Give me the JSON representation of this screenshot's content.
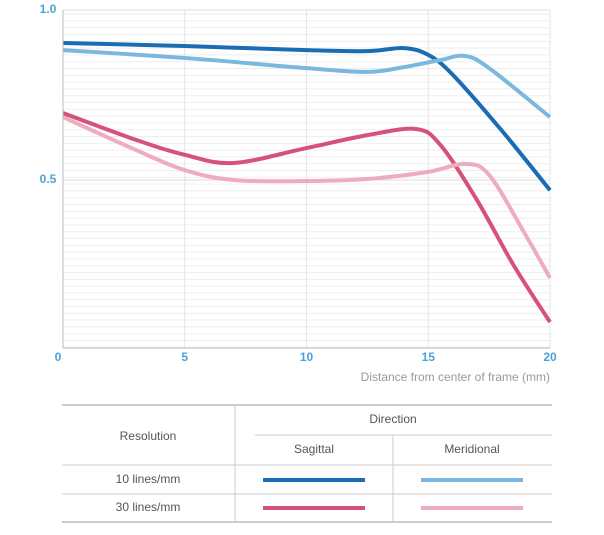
{
  "chart_data": {
    "type": "line",
    "x_label": "Distance from center of frame (mm)",
    "xlim": [
      0,
      20
    ],
    "xticks": [
      0,
      5,
      10,
      15,
      20
    ],
    "ylim": [
      0,
      1
    ],
    "yticks": [
      {
        "value": 0.5,
        "label": "0.5"
      },
      {
        "value": 1,
        "label": "1.0"
      }
    ],
    "grid": true,
    "series": [
      {
        "color": "#1a6db5",
        "x": [
          0,
          5,
          10,
          12.5,
          14,
          15,
          16,
          18,
          20
        ],
        "values": [
          0.903,
          0.894,
          0.882,
          0.879,
          0.888,
          0.868,
          0.81,
          0.647,
          0.47
        ]
      },
      {
        "color": "#7ab8dd",
        "x": [
          0,
          5,
          10,
          12.5,
          14,
          15.5,
          16.5,
          17.5,
          20
        ],
        "values": [
          0.882,
          0.859,
          0.829,
          0.818,
          0.832,
          0.853,
          0.865,
          0.829,
          0.685
        ]
      },
      {
        "color": "#d6527a",
        "x": [
          0,
          3,
          5,
          7,
          10,
          12.5,
          14.5,
          15.5,
          17,
          18.5,
          20
        ],
        "values": [
          0.697,
          0.618,
          0.574,
          0.55,
          0.594,
          0.632,
          0.65,
          0.603,
          0.441,
          0.25,
          0.082
        ]
      },
      {
        "color": "#eeacbf",
        "x": [
          0,
          3,
          5,
          7,
          10,
          12.5,
          15,
          16.5,
          17.5,
          19,
          20
        ],
        "values": [
          0.685,
          0.588,
          0.529,
          0.5,
          0.497,
          0.503,
          0.524,
          0.547,
          0.515,
          0.338,
          0.212
        ]
      }
    ]
  },
  "legend_table": {
    "row_header": "Resolution",
    "column_header": "Direction",
    "columns": [
      "Sagittal",
      "Meridional"
    ],
    "rows": [
      "10 lines/mm",
      "30 lines/mm"
    ]
  }
}
